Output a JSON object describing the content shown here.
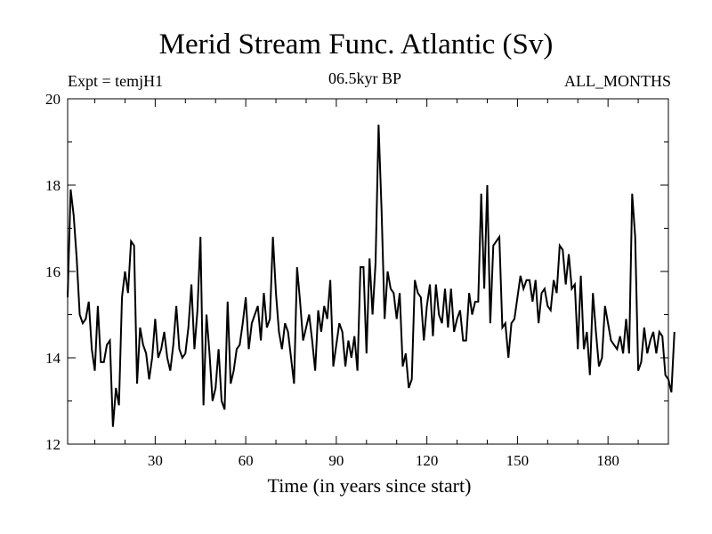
{
  "chart_data": {
    "type": "line",
    "title": "Merid Stream Func. Atlantic (Sv)",
    "experiment_label": "Expt = temjH1",
    "subtitle": "06.5kyr BP",
    "period_label": "ALL_MONTHS",
    "xlabel": "Time (in years since start)",
    "ylabel": "",
    "xlim": [
      1,
      200
    ],
    "ylim": [
      12,
      20
    ],
    "xticks": [
      30,
      60,
      90,
      120,
      150,
      180
    ],
    "yticks": [
      12,
      14,
      16,
      18,
      20
    ],
    "grid": false,
    "series": [
      {
        "name": "Merid Stream Func. Atlantic",
        "color": "#000000",
        "values": [
          15.4,
          17.9,
          17.3,
          16.3,
          15.0,
          14.8,
          14.9,
          15.3,
          14.2,
          13.7,
          15.2,
          13.9,
          13.9,
          14.3,
          14.4,
          12.4,
          13.3,
          12.9,
          15.4,
          16.0,
          15.5,
          16.7,
          16.6,
          13.4,
          14.7,
          14.3,
          14.1,
          13.5,
          14.0,
          14.9,
          14.0,
          14.2,
          14.6,
          14.0,
          13.7,
          14.3,
          15.2,
          14.2,
          14.0,
          14.1,
          14.7,
          15.7,
          14.2,
          15.1,
          16.8,
          12.9,
          15.0,
          14.1,
          13.0,
          13.3,
          14.2,
          13.0,
          12.8,
          15.3,
          13.4,
          13.7,
          14.2,
          14.3,
          14.8,
          15.4,
          14.2,
          14.8,
          15.0,
          15.2,
          14.4,
          15.5,
          14.7,
          14.9,
          16.8,
          15.5,
          14.6,
          14.2,
          14.8,
          14.6,
          14.0,
          13.4,
          16.1,
          15.3,
          14.4,
          14.7,
          15.0,
          14.4,
          13.7,
          15.1,
          14.6,
          15.2,
          14.9,
          15.8,
          13.8,
          14.3,
          14.8,
          14.6,
          13.8,
          14.4,
          14.0,
          14.5,
          13.7,
          16.1,
          16.1,
          14.1,
          16.3,
          15.0,
          16.2,
          19.4,
          17.4,
          14.9,
          16.0,
          15.6,
          15.5,
          14.9,
          15.5,
          13.8,
          14.1,
          13.3,
          13.5,
          15.8,
          15.5,
          15.4,
          14.4,
          15.2,
          15.7,
          14.5,
          15.7,
          15.0,
          14.8,
          15.6,
          14.7,
          15.6,
          14.6,
          14.9,
          15.1,
          14.4,
          14.4,
          15.5,
          15.0,
          15.3,
          15.3,
          17.8,
          15.6,
          18.0,
          14.8,
          16.6,
          16.7,
          16.8,
          14.7,
          14.8,
          14.0,
          14.8,
          14.9,
          15.4,
          15.9,
          15.6,
          15.8,
          15.8,
          15.3,
          15.8,
          14.8,
          15.5,
          15.6,
          15.2,
          15.1,
          15.8,
          15.5,
          16.6,
          16.5,
          15.7,
          16.4,
          15.6,
          15.7,
          14.2,
          15.9,
          14.2,
          14.6,
          13.6,
          15.5,
          14.6,
          13.8,
          14.0,
          15.2,
          14.8,
          14.4,
          14.3,
          14.2,
          14.5,
          14.1,
          14.9,
          14.1,
          17.8,
          16.8,
          13.7,
          13.9,
          14.7,
          14.1,
          14.4,
          14.6,
          14.1,
          14.6,
          14.5,
          13.6,
          13.5,
          13.2,
          14.6
        ]
      }
    ]
  }
}
